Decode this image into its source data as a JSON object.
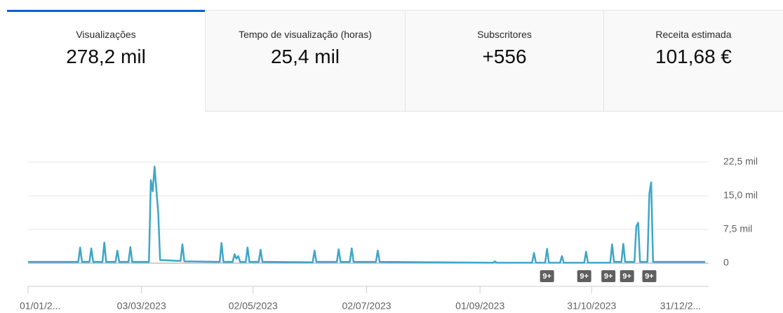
{
  "tabs": [
    {
      "label": "Visualizações",
      "value": "278,2 mil"
    },
    {
      "label": "Tempo de visualização (horas)",
      "value": "25,4 mil"
    },
    {
      "label": "Subscritores",
      "value": "+556"
    },
    {
      "label": "Receita estimada",
      "value": "101,68 €"
    }
  ],
  "chart_data": {
    "type": "line",
    "color": "#3ea6c8",
    "grid": true,
    "xlim": [
      0,
      364
    ],
    "ylim": [
      0,
      22500
    ],
    "xticks": [
      {
        "value": 0,
        "label": "01/01/2..."
      },
      {
        "value": 61,
        "label": "03/03/2023"
      },
      {
        "value": 121,
        "label": "02/05/2023"
      },
      {
        "value": 182,
        "label": "02/07/2023"
      },
      {
        "value": 243,
        "label": "01/09/2023"
      },
      {
        "value": 303,
        "label": "31/10/2023"
      },
      {
        "value": 364,
        "label": "31/12/2..."
      }
    ],
    "yticks": [
      0,
      {
        "value": 7500,
        "label": "7,5 mil"
      },
      {
        "value": 15000,
        "label": "15,0 mil"
      },
      {
        "value": 22500,
        "label": "22,5 mil"
      }
    ],
    "x": [
      0,
      27,
      28,
      29,
      33,
      34,
      35,
      40,
      41,
      42,
      47,
      48,
      49,
      54,
      55,
      56,
      65,
      66,
      67,
      68,
      70,
      71,
      82,
      83,
      84,
      103,
      104,
      105,
      110,
      111,
      112,
      113,
      114,
      117,
      118,
      119,
      124,
      125,
      126,
      153,
      154,
      155,
      166,
      167,
      168,
      173,
      174,
      175,
      187,
      188,
      189,
      250,
      251,
      252,
      271,
      272,
      273,
      278,
      279,
      280,
      286,
      287,
      288,
      299,
      300,
      301,
      313,
      314,
      315,
      319,
      320,
      321,
      326,
      327,
      328,
      329,
      333,
      334,
      335,
      336,
      338,
      364
    ],
    "series": [
      {
        "values": [
          300,
          300,
          3500,
          300,
          300,
          3300,
          300,
          300,
          4600,
          300,
          300,
          2800,
          300,
          300,
          3600,
          300,
          300,
          18500,
          16000,
          21500,
          11000,
          700,
          500,
          4200,
          400,
          300,
          4500,
          300,
          300,
          2000,
          1000,
          1600,
          300,
          300,
          3500,
          300,
          300,
          3000,
          300,
          200,
          2800,
          300,
          300,
          3100,
          300,
          300,
          3300,
          300,
          300,
          2800,
          300,
          100,
          400,
          100,
          100,
          2300,
          100,
          100,
          3200,
          100,
          100,
          1600,
          100,
          100,
          2600,
          100,
          100,
          4200,
          300,
          300,
          4300,
          300,
          300,
          8200,
          9000,
          300,
          300,
          15500,
          18000,
          300,
          300,
          300
        ]
      }
    ],
    "annotations": [
      {
        "x": 279,
        "label": "9+"
      },
      {
        "x": 299,
        "label": "9+"
      },
      {
        "x": 312,
        "label": "9+"
      },
      {
        "x": 322,
        "label": "9+"
      },
      {
        "x": 334,
        "label": "9+"
      }
    ]
  }
}
